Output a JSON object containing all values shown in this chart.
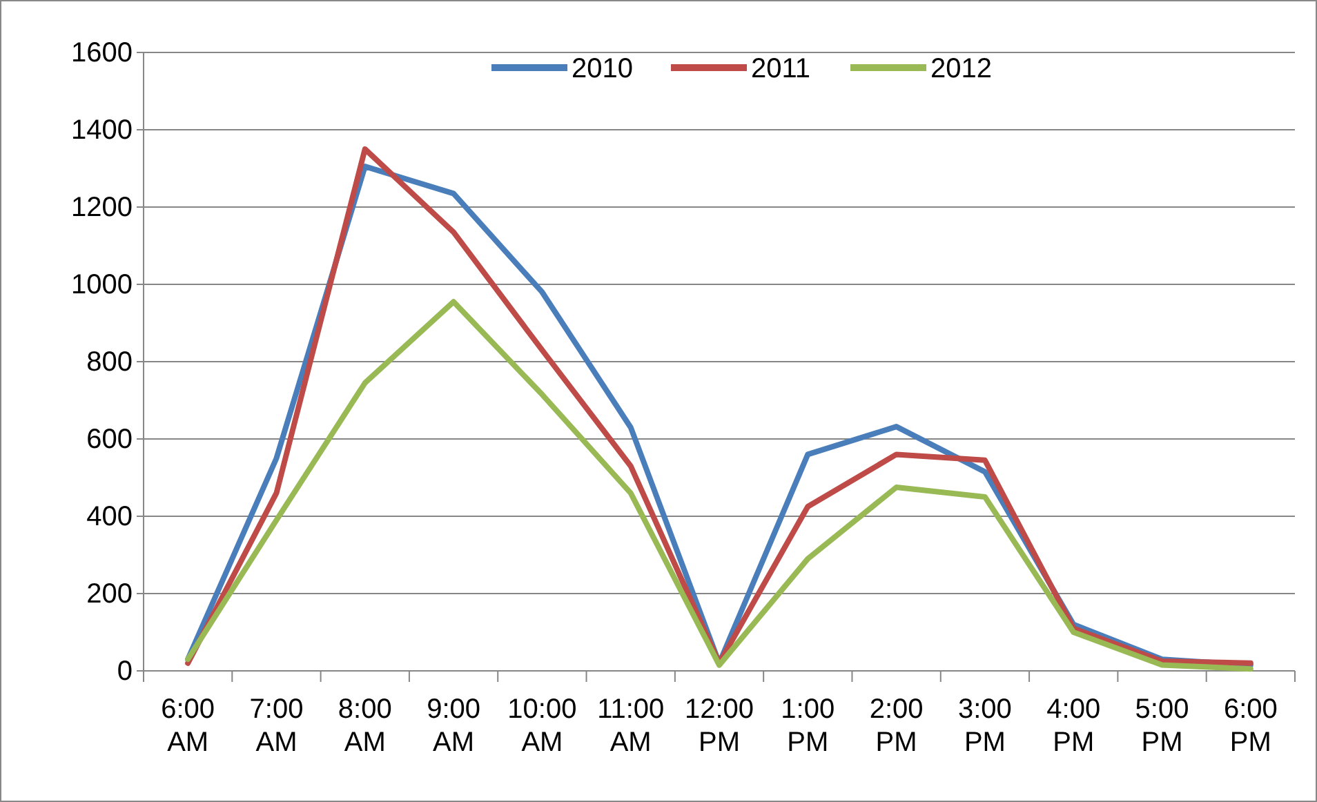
{
  "chart_data": {
    "type": "line",
    "categories": [
      "6:00 AM",
      "7:00 AM",
      "8:00 AM",
      "9:00 AM",
      "10:00 AM",
      "11:00 AM",
      "12:00 PM",
      "1:00 PM",
      "2:00 PM",
      "3:00 PM",
      "4:00 PM",
      "5:00 PM",
      "6:00 PM"
    ],
    "series": [
      {
        "name": "2010",
        "color": "#4a7ebb",
        "values": [
          30,
          550,
          1305,
          1235,
          980,
          630,
          20,
          560,
          632,
          515,
          120,
          30,
          15
        ]
      },
      {
        "name": "2011",
        "color": "#be4b48",
        "values": [
          20,
          460,
          1350,
          1135,
          830,
          530,
          20,
          425,
          560,
          545,
          110,
          25,
          20
        ]
      },
      {
        "name": "2012",
        "color": "#98b954",
        "values": [
          30,
          390,
          745,
          955,
          715,
          460,
          15,
          290,
          475,
          450,
          100,
          15,
          5
        ]
      }
    ],
    "ylim": [
      0,
      1600
    ],
    "yticks": [
      0,
      200,
      400,
      600,
      800,
      1000,
      1200,
      1400,
      1600
    ],
    "grid": "y",
    "legend": "top",
    "marker": "none",
    "line_style": "solid"
  }
}
